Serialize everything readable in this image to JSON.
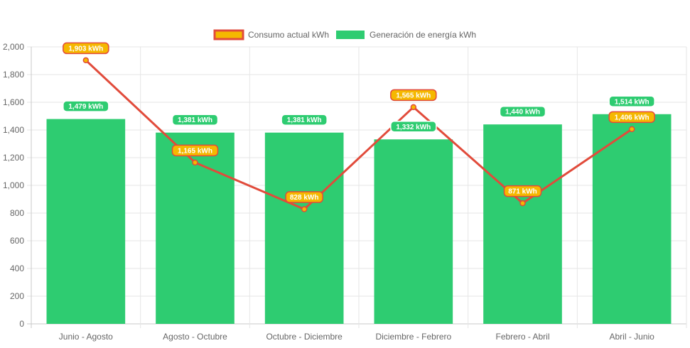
{
  "chart_data": {
    "type": "bar",
    "categories": [
      "Junio - Agosto",
      "Agosto - Octubre",
      "Octubre - Diciembre",
      "Diciembre - Febrero",
      "Febrero - Abril",
      "Abril - Junio"
    ],
    "series": [
      {
        "name": "Consumo actual kWh",
        "type": "line",
        "values": [
          1903,
          1165,
          828,
          1565,
          871,
          1406
        ],
        "labels": [
          "1,903 kWh",
          "1,165 kWh",
          "828 kWh",
          "1,565 kWh",
          "871 kWh",
          "1,406 kWh"
        ],
        "color": "#e14b3b",
        "fill": "#f5b800"
      },
      {
        "name": "Generación de energía kWh",
        "type": "bar",
        "values": [
          1479,
          1381,
          1381,
          1332,
          1440,
          1514
        ],
        "labels": [
          "1,479 kWh",
          "1,381 kWh",
          "1,381 kWh",
          "1,332 kWh",
          "1,440 kWh",
          "1,514 kWh"
        ],
        "color": "#2ecc71"
      }
    ],
    "ylim": [
      0,
      2000
    ],
    "yticks": [
      0,
      200,
      400,
      600,
      800,
      1000,
      1200,
      1400,
      1600,
      1800,
      2000
    ],
    "ytick_labels": [
      "0",
      "200",
      "400",
      "600",
      "800",
      "1,000",
      "1,200",
      "1,400",
      "1,600",
      "1,800",
      "2,000"
    ],
    "grid": true,
    "legend_position": "top-center"
  }
}
